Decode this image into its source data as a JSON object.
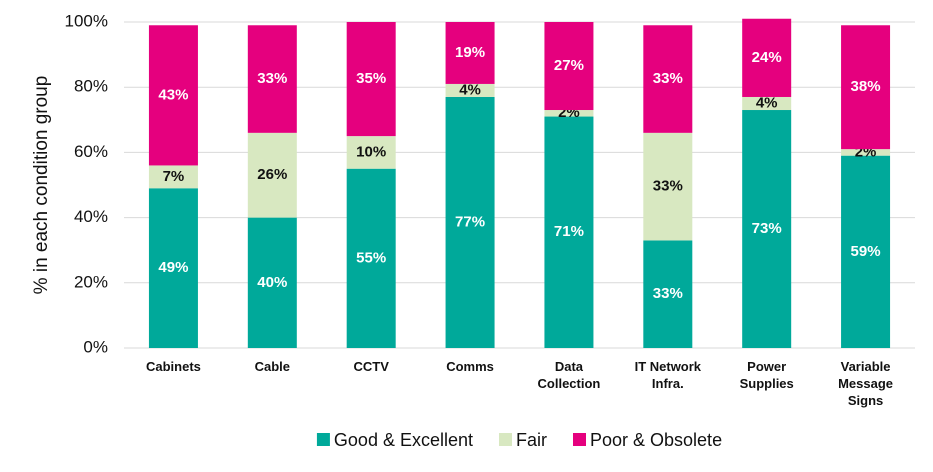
{
  "chart_data": {
    "type": "stacked_bar",
    "y_label": "% in each condition group",
    "categories": [
      "Cabinets",
      "Cable",
      "CCTV",
      "Comms",
      "Data Collection",
      "IT Network Infra.",
      "Power Supplies",
      "Variable Message Signs"
    ],
    "series": [
      {
        "name": "Good & Excellent",
        "color": "#00a99a",
        "label_color": "#ffffff",
        "values": [
          49,
          40,
          55,
          77,
          71,
          33,
          73,
          59
        ],
        "value_labels": [
          "49%",
          "40%",
          "55%",
          "77%",
          "71%",
          "33%",
          "73%",
          "59%"
        ]
      },
      {
        "name": "Fair",
        "color": "#d8e8c1",
        "label_color": "#111111",
        "values": [
          7,
          26,
          10,
          4,
          2,
          33,
          4,
          2
        ],
        "value_labels": [
          "7%",
          "26%",
          "10%",
          "4%",
          "2%",
          "33%",
          "4%",
          "2%"
        ]
      },
      {
        "name": "Poor & Obsolete",
        "color": "#e5007e",
        "label_color": "#ffffff",
        "values": [
          43,
          33,
          35,
          19,
          27,
          33,
          24,
          38
        ],
        "value_labels": [
          "43%",
          "33%",
          "35%",
          "19%",
          "27%",
          "33%",
          "24%",
          "38%"
        ]
      }
    ],
    "ylim": [
      0,
      100
    ],
    "yticks": [
      {
        "value": 0,
        "label": "0%"
      },
      {
        "value": 20,
        "label": "20%"
      },
      {
        "value": 40,
        "label": "40%"
      },
      {
        "value": 60,
        "label": "60%"
      },
      {
        "value": 80,
        "label": "80%"
      },
      {
        "value": 100,
        "label": "100%"
      }
    ],
    "grid": true,
    "legend": "bottom"
  }
}
